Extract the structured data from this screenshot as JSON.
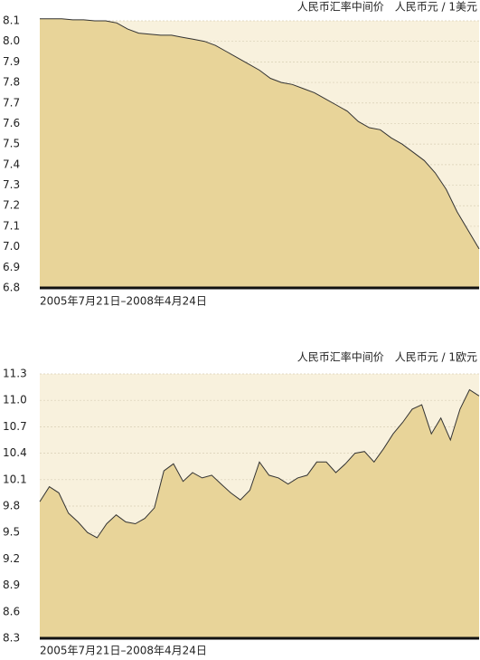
{
  "chart_data": [
    {
      "type": "area",
      "title": "人民币汇率中间价　人民币元 / 1美元",
      "xlabel": "2005年7月21日–2008年4月24日",
      "color": "#e8d499",
      "grid": true,
      "values": [
        8.11,
        8.11,
        8.11,
        8.105,
        8.105,
        8.1,
        8.1,
        8.09,
        8.06,
        8.04,
        8.035,
        8.03,
        8.03,
        8.02,
        8.01,
        8.0,
        7.98,
        7.95,
        7.92,
        7.89,
        7.86,
        7.82,
        7.8,
        7.79,
        7.77,
        7.75,
        7.72,
        7.69,
        7.66,
        7.61,
        7.58,
        7.57,
        7.53,
        7.5,
        7.46,
        7.42,
        7.36,
        7.28,
        7.17,
        7.08,
        6.99
      ],
      "ylim": [
        6.8,
        8.1
      ],
      "yticks": [
        8.1,
        {
          "value": 8,
          "label": "8.0"
        },
        7.9,
        7.8,
        7.7,
        7.6,
        7.5,
        7.4,
        7.3,
        7.2,
        7.1,
        {
          "value": 7,
          "label": "7.0"
        },
        6.9,
        6.8
      ]
    },
    {
      "type": "area",
      "title": "人民币汇率中间价　人民币元 / 1欧元",
      "xlabel": "2005年7月21日–2008年4月24日",
      "color": "#e8d499",
      "grid": true,
      "values": [
        9.85,
        10.02,
        9.95,
        9.72,
        9.62,
        9.5,
        9.44,
        9.6,
        9.7,
        9.62,
        9.6,
        9.66,
        9.78,
        10.2,
        10.28,
        10.08,
        10.18,
        10.12,
        10.15,
        10.05,
        9.95,
        9.87,
        9.98,
        10.3,
        10.15,
        10.12,
        10.05,
        10.12,
        10.15,
        10.3,
        10.3,
        10.18,
        10.28,
        10.4,
        10.42,
        10.3,
        10.45,
        10.62,
        10.75,
        10.9,
        10.95,
        10.62,
        10.8,
        10.55,
        10.9,
        11.12,
        11.05
      ],
      "ylim": [
        8.3,
        11.3
      ],
      "yticks": [
        11.3,
        {
          "value": 11,
          "label": "11.0"
        },
        10.7,
        10.4,
        10.1,
        9.8,
        9.5,
        9.2,
        8.9,
        8.6,
        8.3
      ]
    }
  ]
}
